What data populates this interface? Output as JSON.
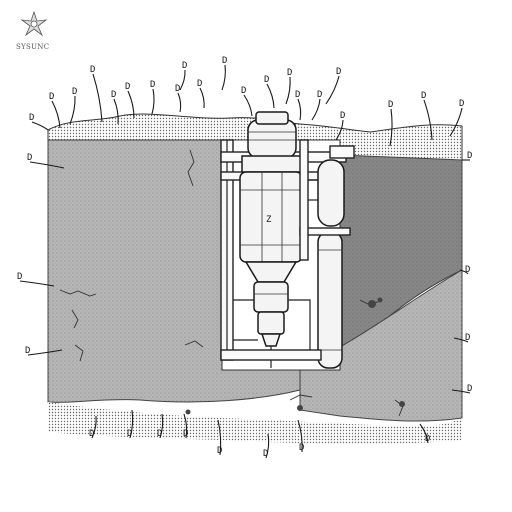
{
  "logo": {
    "text": "SYSUNC",
    "icon": "starburst-logo-icon"
  },
  "callouts": [
    "D",
    "D",
    "D",
    "D",
    "D",
    "D",
    "D",
    "D",
    "D",
    "D",
    "D",
    "D",
    "D",
    "D",
    "D",
    "D",
    "D",
    "D",
    "D",
    "D",
    "D",
    "D",
    "D",
    "D",
    "D",
    "D",
    "D",
    "D",
    "D",
    "D",
    "D",
    "D",
    "D",
    "D",
    "D",
    "D"
  ],
  "vessel_label": "Z",
  "colors": {
    "soil_light": "#b4b4b4",
    "soil_dark": "#868686",
    "ink": "#1a1a1a",
    "background": "#ffffff"
  }
}
